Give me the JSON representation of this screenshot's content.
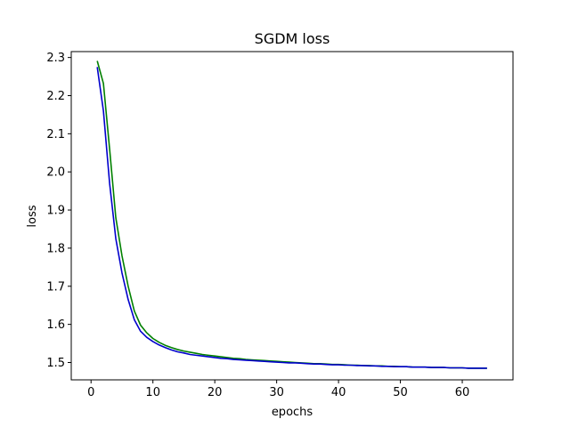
{
  "chart_data": {
    "type": "line",
    "title": "SGDM loss",
    "xlabel": "epochs",
    "ylabel": "loss",
    "xlim": [
      -3.2,
      68.2
    ],
    "ylim": [
      1.4545,
      2.3155
    ],
    "xticks": [
      0,
      10,
      20,
      30,
      40,
      50,
      60
    ],
    "yticks": [
      1.5,
      1.6,
      1.7,
      1.8,
      1.9,
      2.0,
      2.1,
      2.2,
      2.3
    ],
    "ytick_labels": [
      "1.5",
      "1.6",
      "1.7",
      "1.8",
      "1.9",
      "2.0",
      "2.1",
      "2.2",
      "2.3"
    ],
    "grid": false,
    "x": [
      1,
      2,
      3,
      4,
      5,
      6,
      7,
      8,
      9,
      10,
      11,
      12,
      13,
      14,
      15,
      16,
      17,
      18,
      19,
      20,
      21,
      22,
      23,
      24,
      25,
      26,
      27,
      28,
      29,
      30,
      31,
      32,
      33,
      34,
      35,
      36,
      37,
      38,
      39,
      40,
      41,
      42,
      43,
      44,
      45,
      46,
      47,
      48,
      49,
      50,
      51,
      52,
      53,
      54,
      55,
      56,
      57,
      58,
      59,
      60,
      61,
      62,
      63,
      64
    ],
    "series": [
      {
        "color": "#008000",
        "values": [
          2.291,
          2.232,
          2.06,
          1.88,
          1.78,
          1.7,
          1.635,
          1.598,
          1.578,
          1.563,
          1.553,
          1.545,
          1.539,
          1.534,
          1.53,
          1.527,
          1.524,
          1.521,
          1.519,
          1.517,
          1.515,
          1.513,
          1.511,
          1.51,
          1.508,
          1.507,
          1.506,
          1.505,
          1.504,
          1.503,
          1.502,
          1.501,
          1.5,
          1.499,
          1.498,
          1.497,
          1.497,
          1.496,
          1.495,
          1.495,
          1.494,
          1.493,
          1.493,
          1.492,
          1.492,
          1.491,
          1.491,
          1.49,
          1.49,
          1.489,
          1.489,
          1.488,
          1.488,
          1.488,
          1.487,
          1.487,
          1.487,
          1.486,
          1.486,
          1.486,
          1.485,
          1.485,
          1.485,
          1.485
        ]
      },
      {
        "color": "#0000cc",
        "values": [
          2.275,
          2.16,
          1.97,
          1.825,
          1.735,
          1.665,
          1.612,
          1.582,
          1.566,
          1.555,
          1.546,
          1.539,
          1.533,
          1.528,
          1.525,
          1.521,
          1.519,
          1.517,
          1.515,
          1.513,
          1.511,
          1.51,
          1.508,
          1.507,
          1.506,
          1.505,
          1.504,
          1.503,
          1.502,
          1.501,
          1.5,
          1.499,
          1.499,
          1.498,
          1.497,
          1.496,
          1.496,
          1.495,
          1.494,
          1.494,
          1.493,
          1.493,
          1.492,
          1.492,
          1.491,
          1.491,
          1.49,
          1.49,
          1.489,
          1.489,
          1.489,
          1.488,
          1.488,
          1.488,
          1.487,
          1.487,
          1.487,
          1.486,
          1.486,
          1.486,
          1.485,
          1.485,
          1.485,
          1.485
        ]
      }
    ]
  }
}
